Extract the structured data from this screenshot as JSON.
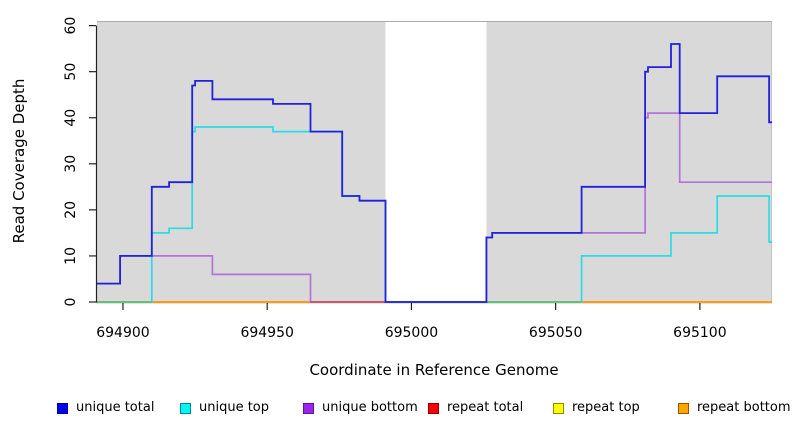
{
  "chart_data": {
    "type": "line",
    "subtype": "step-coverage-plot",
    "title": "",
    "xlabel": "Coordinate in Reference Genome",
    "ylabel": "Read Coverage Depth",
    "xlim": [
      694891,
      695125
    ],
    "ylim": [
      0,
      61
    ],
    "x_ticks": [
      694900,
      694950,
      695000,
      695050,
      695100
    ],
    "y_ticks": [
      0,
      10,
      20,
      30,
      40,
      50,
      60
    ],
    "grid": false,
    "plot_bg": "#d9d9d9",
    "plot_border_color": "#aaaaaa",
    "axis_color": "#222222",
    "gap_region": {
      "from": 694991,
      "to": 695026,
      "color": "#ffffff"
    },
    "baseline_blends": {
      "unique_top_zero": "#69BE6E",
      "unique_bottom_zero": "#C7506B"
    },
    "series": [
      {
        "name": "repeat total",
        "key": "repeat-total",
        "line_color": "#DD2222",
        "steps": [
          [
            694891,
            0
          ]
        ]
      },
      {
        "name": "repeat top",
        "key": "repeat-top",
        "line_color": "#F5E500",
        "steps": [
          [
            694891,
            0
          ]
        ]
      },
      {
        "name": "repeat bottom",
        "key": "repeat-bottom",
        "line_color": "#FF9912",
        "steps": [
          [
            694891,
            0
          ]
        ]
      },
      {
        "name": "unique top",
        "key": "unique-top",
        "line_color": "#2BDCE6",
        "steps": [
          [
            694891,
            0
          ],
          [
            694910,
            15
          ],
          [
            694916,
            16
          ],
          [
            694924,
            37
          ],
          [
            694925,
            38
          ],
          [
            694952,
            37
          ],
          [
            694976,
            23
          ],
          [
            694982,
            22
          ],
          [
            694991,
            0
          ],
          [
            695059,
            10
          ],
          [
            695090,
            15
          ],
          [
            695106,
            23
          ],
          [
            695124,
            13
          ]
        ]
      },
      {
        "name": "unique bottom",
        "key": "unique-bottom",
        "line_color": "#B273DB",
        "steps": [
          [
            694891,
            4
          ],
          [
            694899,
            10
          ],
          [
            694931,
            6
          ],
          [
            694965,
            0
          ],
          [
            695026,
            14
          ],
          [
            695028,
            15
          ],
          [
            695081,
            40
          ],
          [
            695082,
            41
          ],
          [
            695093,
            26
          ]
        ]
      },
      {
        "name": "unique total",
        "key": "unique-total",
        "line_color": "#2121DE",
        "steps": [
          [
            694891,
            4
          ],
          [
            694899,
            10
          ],
          [
            694910,
            25
          ],
          [
            694916,
            26
          ],
          [
            694924,
            47
          ],
          [
            694925,
            48
          ],
          [
            694931,
            44
          ],
          [
            694952,
            43
          ],
          [
            694965,
            37
          ],
          [
            694976,
            23
          ],
          [
            694982,
            22
          ],
          [
            694991,
            0
          ],
          [
            695026,
            14
          ],
          [
            695028,
            15
          ],
          [
            695059,
            25
          ],
          [
            695081,
            50
          ],
          [
            695082,
            51
          ],
          [
            695090,
            56
          ],
          [
            695093,
            41
          ],
          [
            695106,
            49
          ],
          [
            695124,
            39
          ]
        ]
      }
    ],
    "legend": [
      {
        "label": "unique total",
        "fill": "#0000EE",
        "border": "#00008B"
      },
      {
        "label": "unique top",
        "fill": "#00F5FF",
        "border": "#00868B"
      },
      {
        "label": "unique bottom",
        "fill": "#A020F0",
        "border": "#551A8B"
      },
      {
        "label": "repeat total",
        "fill": "#FF0000",
        "border": "#8B0000"
      },
      {
        "label": "repeat top",
        "fill": "#FFFF00",
        "border": "#8B8B00"
      },
      {
        "label": "repeat bottom",
        "fill": "#FFA500",
        "border": "#8B5A00"
      }
    ]
  }
}
